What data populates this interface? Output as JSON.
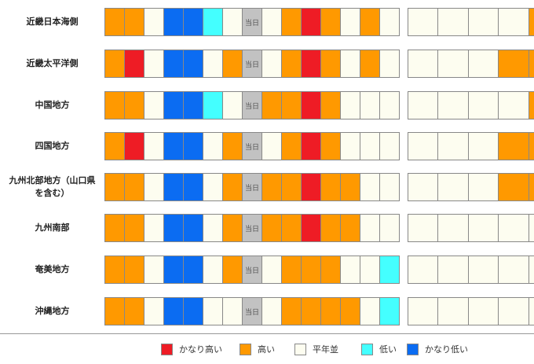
{
  "today_label": "当日",
  "colors": {
    "R": "#ee1c25",
    "O": "#ff9900",
    "W": "#fdfdf0",
    "C": "#44ffff",
    "B": "#0b6cf2",
    "T": "#c2c2c2"
  },
  "regions": [
    {
      "name": "近畿日本海側",
      "days": [
        "O",
        "O",
        "W",
        "B",
        "B",
        "C",
        "W",
        "T",
        "W",
        "O",
        "R",
        "O",
        "W",
        "O",
        "W"
      ],
      "weekly": [
        "W",
        "W",
        "W",
        "W",
        "O"
      ]
    },
    {
      "name": "近畿太平洋側",
      "days": [
        "O",
        "R",
        "W",
        "B",
        "B",
        "W",
        "O",
        "T",
        "W",
        "O",
        "R",
        "O",
        "W",
        "O",
        "W"
      ],
      "weekly": [
        "W",
        "W",
        "W",
        "O",
        "O"
      ]
    },
    {
      "name": "中国地方",
      "days": [
        "O",
        "O",
        "W",
        "B",
        "B",
        "C",
        "W",
        "T",
        "O",
        "O",
        "R",
        "O",
        "W",
        "W",
        "W"
      ],
      "weekly": [
        "W",
        "W",
        "W",
        "W",
        "O"
      ]
    },
    {
      "name": "四国地方",
      "days": [
        "O",
        "R",
        "W",
        "B",
        "B",
        "W",
        "O",
        "T",
        "W",
        "O",
        "R",
        "O",
        "W",
        "W",
        "W"
      ],
      "weekly": [
        "W",
        "W",
        "W",
        "O",
        "O"
      ]
    },
    {
      "name": "九州北部地方（山口県を含む）",
      "days": [
        "O",
        "O",
        "W",
        "B",
        "B",
        "W",
        "O",
        "T",
        "O",
        "O",
        "R",
        "O",
        "O",
        "W",
        "W"
      ],
      "weekly": [
        "W",
        "W",
        "W",
        "O",
        "O"
      ]
    },
    {
      "name": "九州南部",
      "days": [
        "O",
        "O",
        "W",
        "B",
        "B",
        "W",
        "O",
        "T",
        "O",
        "O",
        "R",
        "O",
        "O",
        "W",
        "W"
      ],
      "weekly": [
        "W",
        "W",
        "W",
        "W",
        "W"
      ]
    },
    {
      "name": "奄美地方",
      "days": [
        "O",
        "O",
        "W",
        "B",
        "B",
        "W",
        "O",
        "T",
        "W",
        "O",
        "O",
        "O",
        "W",
        "W",
        "C"
      ],
      "weekly": [
        "W",
        "W",
        "W",
        "W",
        "W"
      ]
    },
    {
      "name": "沖縄地方",
      "days": [
        "O",
        "O",
        "W",
        "B",
        "B",
        "W",
        "W",
        "T",
        "W",
        "O",
        "O",
        "O",
        "O",
        "W",
        "C"
      ],
      "weekly": [
        "W",
        "W",
        "W",
        "W",
        "W"
      ]
    }
  ],
  "legend": [
    {
      "label": "かなり高い",
      "color": "#ee1c25"
    },
    {
      "label": "高い",
      "color": "#ff9900"
    },
    {
      "label": "平年並",
      "color": "#fdfdf0"
    },
    {
      "label": "低い",
      "color": "#44ffff"
    },
    {
      "label": "かなり低い",
      "color": "#0b6cf2"
    }
  ]
}
